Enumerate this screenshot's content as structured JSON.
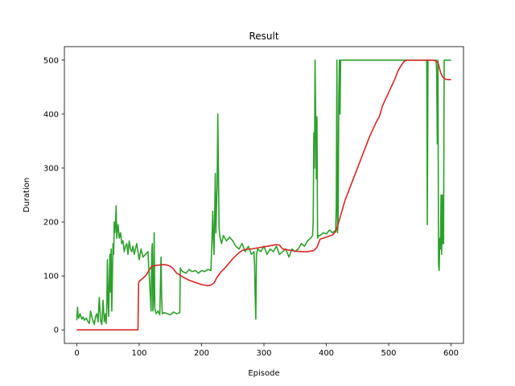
{
  "chart_data": {
    "type": "line",
    "title": "Result",
    "xlabel": "Episode",
    "ylabel": "Duration",
    "xlim": [
      -20,
      620
    ],
    "ylim": [
      -25,
      525
    ],
    "xticks": [
      0,
      100,
      200,
      300,
      400,
      500,
      600
    ],
    "yticks": [
      0,
      100,
      200,
      300,
      400,
      500
    ],
    "grid": false,
    "series": [
      {
        "color": "#2ca02c",
        "x": [
          0,
          1,
          2,
          3,
          5,
          8,
          10,
          12,
          15,
          18,
          20,
          22,
          25,
          28,
          30,
          32,
          34,
          36,
          38,
          40,
          42,
          44,
          46,
          47,
          48,
          49,
          50,
          51,
          52,
          53,
          54,
          55,
          56,
          57,
          58,
          59,
          60,
          61,
          62,
          63,
          64,
          65,
          66,
          68,
          70,
          72,
          74,
          76,
          78,
          80,
          82,
          84,
          86,
          88,
          90,
          92,
          94,
          96,
          98,
          100,
          103,
          106,
          110,
          114,
          118,
          119,
          120,
          121,
          122,
          123,
          124,
          125,
          127,
          130,
          133,
          135,
          136,
          137,
          140,
          145,
          150,
          155,
          160,
          165,
          166,
          168,
          170,
          175,
          180,
          185,
          190,
          195,
          200,
          205,
          210,
          215,
          217,
          218,
          219,
          220,
          221,
          222,
          223,
          224,
          225,
          226,
          227,
          228,
          229,
          230,
          232,
          235,
          240,
          245,
          250,
          255,
          260,
          265,
          270,
          275,
          280,
          284,
          285,
          286,
          287,
          288,
          290,
          295,
          300,
          305,
          310,
          315,
          320,
          325,
          330,
          335,
          340,
          345,
          350,
          355,
          360,
          365,
          370,
          375,
          378,
          379,
          380,
          381,
          382,
          383,
          384,
          385,
          386,
          388,
          390,
          395,
          400,
          405,
          410,
          415,
          416,
          417,
          418,
          419,
          420,
          421,
          422,
          423,
          424,
          425,
          430,
          450,
          480,
          500,
          520,
          540,
          555,
          560,
          561,
          562,
          563,
          564,
          565,
          566,
          570,
          574,
          575,
          576,
          577,
          578,
          579,
          580,
          581,
          582,
          583,
          584,
          585,
          586,
          587,
          588,
          589,
          590,
          591,
          592,
          595,
          600
        ],
        "y": [
          18,
          42,
          25,
          22,
          30,
          20,
          24,
          18,
          22,
          15,
          12,
          35,
          20,
          10,
          25,
          30,
          15,
          60,
          18,
          10,
          55,
          15,
          30,
          12,
          40,
          130,
          60,
          25,
          90,
          140,
          70,
          150,
          35,
          100,
          160,
          140,
          200,
          180,
          195,
          230,
          170,
          185,
          195,
          170,
          180,
          160,
          165,
          145,
          155,
          160,
          140,
          165,
          150,
          145,
          155,
          140,
          150,
          160,
          145,
          130,
          150,
          135,
          140,
          145,
          60,
          35,
          140,
          160,
          35,
          60,
          180,
          40,
          30,
          35,
          28,
          135,
          60,
          30,
          32,
          30,
          28,
          33,
          30,
          32,
          115,
          110,
          108,
          105,
          112,
          108,
          110,
          105,
          110,
          108,
          112,
          110,
          180,
          220,
          165,
          140,
          210,
          290,
          180,
          230,
          270,
          400,
          300,
          190,
          175,
          170,
          160,
          175,
          165,
          172,
          165,
          155,
          150,
          160,
          145,
          155,
          140,
          145,
          120,
          60,
          20,
          140,
          150,
          145,
          155,
          140,
          150,
          145,
          155,
          140,
          145,
          150,
          135,
          150,
          145,
          150,
          160,
          155,
          165,
          170,
          175,
          200,
          365,
          300,
          500,
          390,
          280,
          395,
          170,
          175,
          175,
          180,
          178,
          185,
          180,
          185,
          230,
          500,
          180,
          200,
          430,
          500,
          400,
          500,
          500,
          500,
          500,
          500,
          500,
          500,
          500,
          500,
          500,
          500,
          500,
          195,
          500,
          500,
          500,
          500,
          500,
          500,
          500,
          500,
          480,
          345,
          500,
          120,
          110,
          170,
          150,
          250,
          140,
          250,
          160,
          160,
          500,
          500,
          500,
          500,
          500,
          500
        ]
      },
      {
        "color": "#d62728",
        "x": [
          0,
          98,
          99,
          100,
          110,
          120,
          130,
          140,
          145,
          150,
          155,
          160,
          165,
          170,
          180,
          190,
          200,
          210,
          215,
          220,
          225,
          230,
          240,
          250,
          260,
          265,
          270,
          280,
          290,
          300,
          310,
          320,
          325,
          330,
          340,
          350,
          360,
          370,
          380,
          385,
          390,
          400,
          410,
          415,
          420,
          430,
          440,
          450,
          460,
          470,
          480,
          485,
          490,
          500,
          510,
          515,
          520,
          525,
          530,
          540,
          550,
          560,
          570,
          575,
          578,
          580,
          583,
          586,
          590,
          595,
          600
        ],
        "y": [
          0,
          0,
          87,
          90,
          100,
          118,
          120,
          121,
          120,
          118,
          113,
          105,
          102,
          98,
          92,
          88,
          84,
          82,
          83,
          87,
          98,
          106,
          118,
          132,
          143,
          147,
          149,
          150,
          152,
          154,
          156,
          158,
          157,
          150,
          148,
          146,
          145,
          145,
          147,
          153,
          168,
          172,
          176,
          182,
          200,
          240,
          270,
          300,
          330,
          360,
          385,
          395,
          415,
          440,
          465,
          480,
          490,
          498,
          500,
          500,
          500,
          500,
          500,
          499,
          497,
          492,
          478,
          470,
          465,
          464,
          464
        ]
      }
    ]
  }
}
